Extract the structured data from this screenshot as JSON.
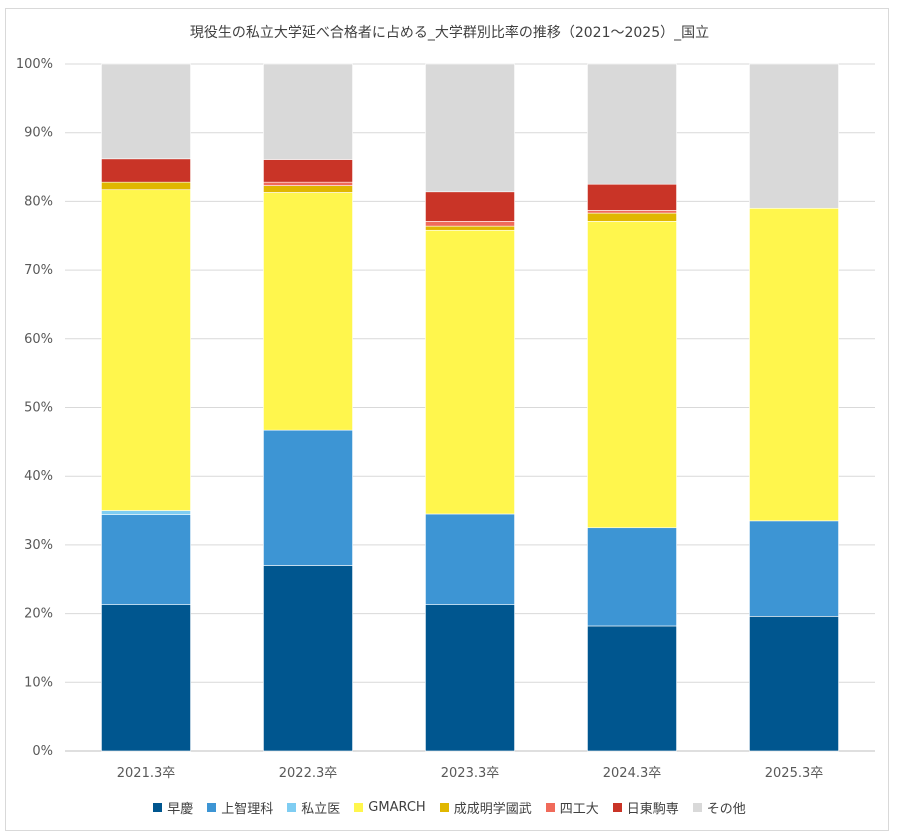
{
  "chart_data": {
    "type": "bar",
    "stacked": true,
    "title": "現役生の私立大学延べ合格者に占める_大学群別比率の推移（2021～2025）_国立",
    "xlabel": "",
    "ylabel": "",
    "ylim": [
      0,
      100
    ],
    "y_ticks": [
      "0%",
      "10%",
      "20%",
      "30%",
      "40%",
      "50%",
      "60%",
      "70%",
      "80%",
      "90%",
      "100%"
    ],
    "grid": true,
    "legend_position": "bottom",
    "categories": [
      "2021.3卒",
      "2022.3卒",
      "2023.3卒",
      "2024.3卒",
      "2025.3卒"
    ],
    "series": [
      {
        "name": "早慶",
        "color": "#00568f",
        "values": [
          21.3,
          27.0,
          21.3,
          18.2,
          19.6
        ]
      },
      {
        "name": "上智理科",
        "color": "#3d95d4",
        "values": [
          13.1,
          19.7,
          13.2,
          14.3,
          13.9
        ]
      },
      {
        "name": "私立医",
        "color": "#7fcdf2",
        "values": [
          0.6,
          0.0,
          0.0,
          0.0,
          0.0
        ]
      },
      {
        "name": "GMARCH",
        "color": "#fff64d",
        "values": [
          46.7,
          34.6,
          41.3,
          44.6,
          45.5
        ]
      },
      {
        "name": "成成明学國武",
        "color": "#e0b700",
        "values": [
          1.1,
          1.0,
          0.6,
          1.2,
          0.0
        ]
      },
      {
        "name": "四工大",
        "color": "#f06a5a",
        "values": [
          0.0,
          0.5,
          0.7,
          0.4,
          0.0
        ]
      },
      {
        "name": "日東駒専",
        "color": "#c93427",
        "values": [
          3.4,
          3.3,
          4.3,
          3.8,
          0.0
        ]
      },
      {
        "name": "その他",
        "color": "#d9d9d9",
        "values": [
          13.8,
          13.9,
          18.6,
          17.5,
          21.0
        ]
      }
    ]
  }
}
